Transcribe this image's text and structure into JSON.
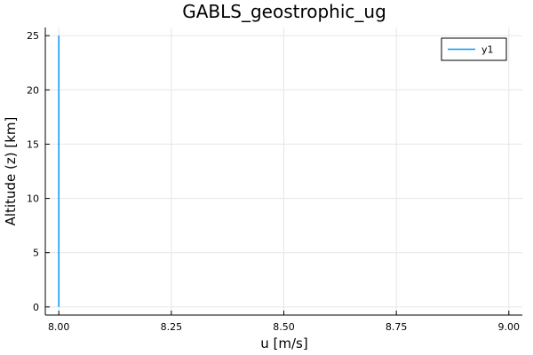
{
  "chart_data": {
    "type": "line",
    "title": "GABLS_geostrophic_ug",
    "xlabel": "u [m/s]",
    "ylabel": "Altitude (z) [km]",
    "xlim": [
      7.97,
      9.03
    ],
    "ylim": [
      -0.75,
      25.75
    ],
    "xticks": [
      8.0,
      8.25,
      8.5,
      8.75,
      9.0
    ],
    "xtick_labels": [
      "8.00",
      "8.25",
      "8.50",
      "8.75",
      "9.00"
    ],
    "yticks": [
      0,
      5,
      10,
      15,
      20,
      25
    ],
    "ytick_labels": [
      "0",
      "5",
      "10",
      "15",
      "20",
      "25"
    ],
    "grid": true,
    "legend_position": "top-right",
    "series": [
      {
        "name": "y1",
        "color": "#009AFA",
        "x": [
          8.0,
          8.0
        ],
        "y": [
          0,
          25
        ]
      }
    ]
  }
}
